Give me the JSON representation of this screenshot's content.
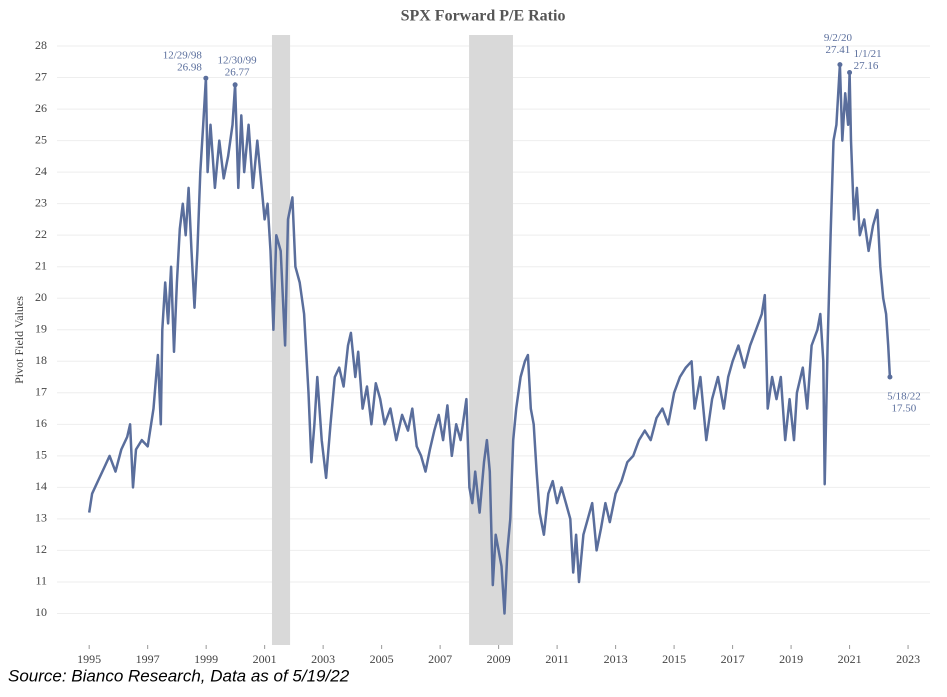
{
  "chart_data": {
    "type": "line",
    "title": "SPX Forward P/E Ratio",
    "y_label": "Pivot Field Values",
    "source": "Source: Bianco Research, Data as of 5/19/22",
    "xlim": [
      1993.9,
      2023.75
    ],
    "ylim": [
      9,
      28.35
    ],
    "xticks": [
      1995,
      1997,
      1999,
      2001,
      2003,
      2005,
      2007,
      2009,
      2011,
      2013,
      2015,
      2017,
      2019,
      2021,
      2023
    ],
    "yticks": [
      10,
      11,
      12,
      13,
      14,
      15,
      16,
      17,
      18,
      19,
      20,
      21,
      22,
      23,
      24,
      25,
      26,
      27,
      28
    ],
    "grid": true,
    "shaded_periods": [
      [
        2001.25,
        2001.87
      ],
      [
        2007.99,
        2009.49
      ]
    ],
    "shade_color": "#d9d9d9",
    "series": [
      {
        "color": "#5a6e9c",
        "x": [
          1995.0,
          1995.1,
          1995.3,
          1995.5,
          1995.7,
          1995.9,
          1996.1,
          1996.3,
          1996.4,
          1996.5,
          1996.6,
          1996.8,
          1997.0,
          1997.2,
          1997.35,
          1997.45,
          1997.5,
          1997.6,
          1997.7,
          1997.8,
          1997.9,
          1998.0,
          1998.1,
          1998.2,
          1998.3,
          1998.4,
          1998.5,
          1998.6,
          1998.7,
          1998.8,
          1998.9,
          1998.99,
          1999.05,
          1999.15,
          1999.3,
          1999.45,
          1999.6,
          1999.75,
          1999.9,
          1999.99,
          2000.1,
          2000.2,
          2000.3,
          2000.45,
          2000.6,
          2000.75,
          2000.9,
          2001.0,
          2001.1,
          2001.2,
          2001.3,
          2001.4,
          2001.55,
          2001.7,
          2001.8,
          2001.95,
          2002.05,
          2002.2,
          2002.35,
          2002.5,
          2002.6,
          2002.7,
          2002.8,
          2002.95,
          2003.1,
          2003.25,
          2003.4,
          2003.55,
          2003.7,
          2003.85,
          2003.95,
          2004.1,
          2004.2,
          2004.35,
          2004.5,
          2004.65,
          2004.8,
          2004.95,
          2005.1,
          2005.3,
          2005.5,
          2005.7,
          2005.9,
          2006.05,
          2006.2,
          2006.35,
          2006.5,
          2006.65,
          2006.8,
          2006.95,
          2007.1,
          2007.25,
          2007.4,
          2007.55,
          2007.7,
          2007.9,
          2008.0,
          2008.1,
          2008.2,
          2008.35,
          2008.5,
          2008.6,
          2008.7,
          2008.8,
          2008.9,
          2009.0,
          2009.1,
          2009.2,
          2009.3,
          2009.4,
          2009.5,
          2009.6,
          2009.75,
          2009.9,
          2010.0,
          2010.1,
          2010.2,
          2010.3,
          2010.4,
          2010.55,
          2010.7,
          2010.85,
          2011.0,
          2011.15,
          2011.3,
          2011.45,
          2011.55,
          2011.65,
          2011.75,
          2011.9,
          2012.05,
          2012.2,
          2012.35,
          2012.5,
          2012.65,
          2012.8,
          2013.0,
          2013.2,
          2013.4,
          2013.6,
          2013.8,
          2014.0,
          2014.2,
          2014.4,
          2014.6,
          2014.8,
          2015.0,
          2015.2,
          2015.4,
          2015.6,
          2015.7,
          2015.9,
          2016.1,
          2016.3,
          2016.5,
          2016.7,
          2016.85,
          2017.0,
          2017.2,
          2017.4,
          2017.6,
          2017.8,
          2018.0,
          2018.1,
          2018.2,
          2018.35,
          2018.5,
          2018.65,
          2018.8,
          2018.95,
          2019.1,
          2019.2,
          2019.4,
          2019.55,
          2019.7,
          2019.9,
          2020.0,
          2020.1,
          2020.15,
          2020.25,
          2020.35,
          2020.45,
          2020.55,
          2020.67,
          2020.75,
          2020.85,
          2020.95,
          2021.0,
          2021.05,
          2021.15,
          2021.25,
          2021.35,
          2021.5,
          2021.65,
          2021.8,
          2021.95,
          2022.05,
          2022.15,
          2022.25,
          2022.32,
          2022.38
        ],
        "values": [
          13.2,
          13.8,
          14.2,
          14.6,
          15.0,
          14.5,
          15.2,
          15.6,
          16.0,
          14.0,
          15.2,
          15.5,
          15.3,
          16.5,
          18.2,
          16.0,
          19.0,
          20.5,
          19.2,
          21.0,
          18.3,
          20.5,
          22.2,
          23.0,
          22.0,
          23.5,
          21.5,
          19.7,
          21.5,
          24.0,
          25.5,
          26.98,
          24.0,
          25.5,
          23.5,
          25.0,
          23.8,
          24.5,
          25.5,
          26.77,
          23.5,
          25.8,
          24.0,
          25.5,
          23.5,
          25.0,
          23.5,
          22.5,
          23.0,
          21.5,
          19.0,
          22.0,
          21.5,
          18.5,
          22.5,
          23.2,
          21.0,
          20.5,
          19.5,
          17.0,
          14.8,
          16.0,
          17.5,
          15.5,
          14.3,
          16.0,
          17.5,
          17.8,
          17.2,
          18.5,
          18.9,
          17.5,
          18.3,
          16.5,
          17.2,
          16.0,
          17.3,
          16.8,
          16.0,
          16.5,
          15.5,
          16.3,
          15.8,
          16.5,
          15.3,
          15.0,
          14.5,
          15.2,
          15.8,
          16.3,
          15.5,
          16.6,
          15.0,
          16.0,
          15.5,
          16.8,
          14.0,
          13.5,
          14.5,
          13.2,
          14.8,
          15.5,
          14.5,
          10.9,
          12.5,
          12.0,
          11.5,
          10.0,
          12.0,
          13.0,
          15.5,
          16.5,
          17.5,
          18.0,
          18.2,
          16.5,
          16.0,
          14.5,
          13.2,
          12.5,
          13.8,
          14.2,
          13.5,
          14.0,
          13.5,
          13.0,
          11.3,
          12.5,
          11.0,
          12.5,
          13.0,
          13.5,
          12.0,
          12.7,
          13.5,
          12.9,
          13.8,
          14.2,
          14.8,
          15.0,
          15.5,
          15.8,
          15.5,
          16.2,
          16.5,
          16.0,
          17.0,
          17.5,
          17.8,
          18.0,
          16.5,
          17.5,
          15.5,
          16.8,
          17.5,
          16.5,
          17.5,
          18.0,
          18.5,
          17.8,
          18.5,
          19.0,
          19.5,
          20.1,
          16.5,
          17.5,
          16.8,
          17.5,
          15.5,
          16.8,
          15.5,
          17.0,
          17.8,
          16.5,
          18.5,
          19.0,
          19.5,
          18.0,
          14.1,
          18.5,
          22.0,
          25.0,
          25.5,
          27.41,
          25.0,
          26.5,
          25.5,
          27.16,
          25.0,
          22.5,
          23.5,
          22.0,
          22.5,
          21.5,
          22.3,
          22.8,
          21.0,
          20.0,
          19.5,
          18.5,
          17.5
        ]
      }
    ],
    "annotations": [
      {
        "date": "12/29/98",
        "label": "26.98",
        "x": 1998.99,
        "y": 26.98
      },
      {
        "date": "12/30/99",
        "label": "26.77",
        "x": 1999.99,
        "y": 26.77
      },
      {
        "date": "9/2/20",
        "label": "27.41",
        "x": 2020.67,
        "y": 27.41
      },
      {
        "date": "1/1/21",
        "label": "27.16",
        "x": 2021.0,
        "y": 27.16
      },
      {
        "date": "5/18/22",
        "label": "17.50",
        "x": 2022.38,
        "y": 17.5
      }
    ]
  }
}
